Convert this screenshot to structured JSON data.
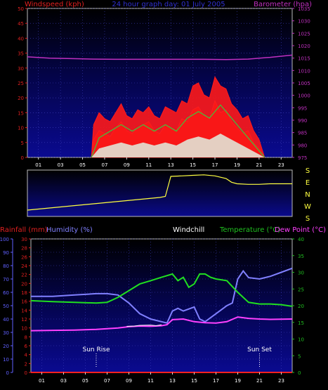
{
  "header": {
    "windspeed_label": "Windspeed (kph)",
    "title": "24 hour graph day:  01 July 2005",
    "barometer_label": "Barometer (hpa)"
  },
  "bottom_header": {
    "rainfall_label": "Rainfall (mm)",
    "humidity_label": "Humidity (%)",
    "windchill_label": "Windchill",
    "temperature_label": "Temperature (°C)",
    "dewpoint_label": "Dew Point (°C)"
  },
  "compass": [
    "S",
    "E",
    "N",
    "W",
    "S"
  ],
  "sun": {
    "rise_label": "Sun Rise",
    "set_label": "Sun Set",
    "rise_hour": 6,
    "set_hour": 21
  },
  "colors": {
    "windspeed": "#ff1a1a",
    "windgust": "#ff1a1a",
    "wind_avg": "#3cc83c",
    "wind_light": "#e0f0e0",
    "barometer": "#c030c0",
    "direction": "#ffff40",
    "humidity": "#8080ff",
    "temperature": "#20e020",
    "dewpoint": "#ff40ff",
    "rainfall": "#ff2020",
    "axis_red": "#e02020",
    "axis_magenta": "#c030c0",
    "axis_green": "#20c020",
    "axis_blue": "#6060ff",
    "grid": "#4040c0"
  },
  "chart_data": [
    {
      "type": "area",
      "x_ticks": [
        "01",
        "03",
        "05",
        "07",
        "09",
        "11",
        "13",
        "15",
        "17",
        "19",
        "21",
        "23"
      ],
      "xlim": [
        0,
        24
      ],
      "y_left": {
        "label": "Windspeed (kph)",
        "lim": [
          0,
          50
        ],
        "ticks": [
          0,
          5,
          10,
          15,
          20,
          25,
          30,
          35,
          40,
          45,
          50
        ]
      },
      "y_right": {
        "label": "Barometer (hpa)",
        "lim": [
          975,
          1035
        ],
        "ticks": [
          975,
          980,
          985,
          990,
          995,
          1000,
          1005,
          1010,
          1015,
          1020,
          1025,
          1030,
          1035
        ]
      },
      "series": [
        {
          "name": "Barometer (hpa)",
          "axis": "right",
          "x": [
            0,
            2,
            4,
            6,
            8,
            10,
            12,
            14,
            16,
            18,
            20,
            22,
            24
          ],
          "y": [
            1015.5,
            1015.0,
            1014.8,
            1014.6,
            1014.5,
            1014.5,
            1014.5,
            1014.5,
            1014.5,
            1014.4,
            1014.6,
            1015.3,
            1016.2
          ]
        },
        {
          "name": "Windspeed (kph)",
          "axis": "left",
          "x": [
            5.8,
            6.0,
            6.5,
            7.0,
            7.5,
            8.0,
            8.5,
            9.0,
            9.5,
            10.0,
            10.5,
            11.0,
            11.5,
            12.0,
            12.5,
            13.0,
            13.5,
            14.0,
            14.5,
            15.0,
            15.5,
            16.0,
            16.5,
            17.0,
            17.5,
            18.0,
            18.5,
            19.0,
            19.5,
            20.0,
            20.5,
            21.0,
            21.5
          ],
          "y": [
            0,
            6,
            9,
            8,
            7,
            10,
            12,
            9,
            8,
            10,
            11,
            12,
            9,
            8,
            11,
            10,
            9,
            13,
            12,
            16,
            17,
            14,
            13,
            19,
            15,
            16,
            12,
            10,
            8,
            9,
            5,
            3,
            0
          ]
        },
        {
          "name": "Windgust (kph)",
          "axis": "left",
          "x": [
            5.8,
            6.0,
            6.5,
            7.0,
            7.5,
            8.0,
            8.5,
            9.0,
            9.5,
            10.0,
            10.5,
            11.0,
            11.5,
            12.0,
            12.5,
            13.0,
            13.5,
            14.0,
            14.5,
            15.0,
            15.5,
            16.0,
            16.5,
            17.0,
            17.5,
            18.0,
            18.5,
            19.0,
            19.5,
            20.0,
            20.5,
            21.0,
            21.5
          ],
          "y": [
            0,
            11,
            15,
            13,
            12,
            15,
            18,
            14,
            13,
            16,
            15,
            17,
            14,
            13,
            17,
            16,
            15,
            19,
            18,
            24,
            25,
            21,
            20,
            27,
            24,
            23,
            18,
            16,
            13,
            14,
            9,
            6,
            0
          ]
        },
        {
          "name": "Average wind (kph)",
          "axis": "left",
          "x": [
            5.8,
            6.5,
            7.5,
            8.5,
            9.5,
            10.5,
            11.5,
            12.5,
            13.5,
            14.5,
            15.5,
            16.5,
            17.5,
            18.5,
            19.5,
            20.5,
            21.5
          ],
          "y": [
            0,
            3,
            4,
            5,
            4,
            5,
            4,
            5,
            4,
            6,
            7,
            6,
            8,
            6,
            4,
            2,
            0
          ]
        }
      ]
    },
    {
      "type": "line",
      "xlim": [
        0,
        24
      ],
      "y_right_labels": [
        "S",
        "E",
        "N",
        "W",
        "S"
      ],
      "series": [
        {
          "name": "Wind direction",
          "ylim": [
            0,
            360
          ],
          "x": [
            0,
            2,
            4,
            6,
            8,
            10,
            11,
            12,
            12.5,
            13.0,
            14,
            15,
            16,
            17,
            18,
            18.5,
            19,
            20,
            21,
            22,
            24
          ],
          "y": [
            20,
            40,
            60,
            80,
            100,
            120,
            130,
            140,
            150,
            340,
            345,
            350,
            355,
            345,
            320,
            285,
            270,
            265,
            265,
            270,
            270
          ]
        }
      ]
    },
    {
      "type": "line",
      "x_ticks": [
        "01",
        "03",
        "05",
        "07",
        "09",
        "11",
        "13",
        "15",
        "17",
        "19",
        "21",
        "23"
      ],
      "xlim": [
        0,
        24
      ],
      "axes": {
        "humidity": {
          "label": "Humidity (%)",
          "lim": [
            0,
            100
          ],
          "ticks": [
            0,
            10,
            20,
            30,
            40,
            50,
            60,
            70,
            80,
            90,
            100
          ]
        },
        "rainfall": {
          "label": "Rainfall (mm)",
          "lim": [
            0,
            30
          ],
          "ticks": [
            0,
            2,
            4,
            6,
            8,
            10,
            12,
            14,
            16,
            18,
            20,
            22,
            24,
            26,
            28,
            30
          ]
        },
        "temperature": {
          "label": "Temperature (°C)",
          "lim": [
            0,
            40
          ],
          "ticks": [
            0,
            5,
            10,
            15,
            20,
            25,
            30,
            35,
            40
          ]
        }
      },
      "series": [
        {
          "name": "Humidity (%)",
          "axis": "humidity",
          "x": [
            0,
            2,
            4,
            6,
            7,
            8,
            9,
            10,
            11,
            12,
            12.5,
            13,
            13.5,
            14,
            15,
            15.5,
            16,
            17,
            17.5,
            18,
            18.5,
            19,
            19.5,
            20,
            21,
            22,
            23,
            24
          ],
          "y": [
            57,
            57,
            58,
            59,
            59,
            58,
            52,
            44,
            40,
            38,
            37,
            46,
            48,
            46,
            49,
            40,
            38,
            44,
            47,
            50,
            52,
            70,
            76,
            71,
            70,
            72,
            75,
            78
          ]
        },
        {
          "name": "Temperature (°C)",
          "axis": "temperature",
          "x": [
            0,
            2,
            4,
            6,
            7,
            8,
            9,
            10,
            11,
            12,
            13,
            13.5,
            14,
            14.5,
            15,
            15.5,
            16,
            16.5,
            17,
            18,
            19,
            20,
            21,
            22,
            23,
            24
          ],
          "y": [
            21.5,
            21.2,
            21.0,
            20.8,
            21.0,
            22.5,
            24.5,
            26.5,
            27.5,
            28.5,
            29.5,
            27.5,
            28.5,
            25.5,
            26.5,
            29.5,
            29.5,
            28.5,
            28.0,
            27.5,
            24.0,
            21.0,
            20.5,
            20.5,
            20.3,
            19.8
          ]
        },
        {
          "name": "Dew Point (°C)",
          "axis": "temperature",
          "x": [
            0,
            2,
            4,
            6,
            8,
            9,
            10,
            11,
            12,
            12.5,
            13,
            14,
            15,
            16,
            17,
            18,
            19,
            20,
            21,
            22,
            24
          ],
          "y": [
            12.5,
            12.6,
            12.7,
            12.9,
            13.3,
            13.7,
            13.9,
            13.8,
            14.0,
            14.3,
            15.8,
            16.0,
            15.2,
            14.9,
            14.8,
            15.2,
            16.6,
            16.2,
            16.0,
            15.9,
            16.0
          ]
        },
        {
          "name": "Windchill",
          "axis": "temperature",
          "x": [
            8.8,
            9.5,
            10,
            11,
            11.5,
            12
          ],
          "y": [
            13.8,
            13.9,
            14.1,
            14.2,
            14.0,
            14.3
          ]
        },
        {
          "name": "Rainfall (mm)",
          "axis": "rainfall",
          "x": [
            0,
            10,
            20,
            24
          ],
          "y": [
            0,
            0,
            0,
            0
          ]
        }
      ]
    }
  ]
}
